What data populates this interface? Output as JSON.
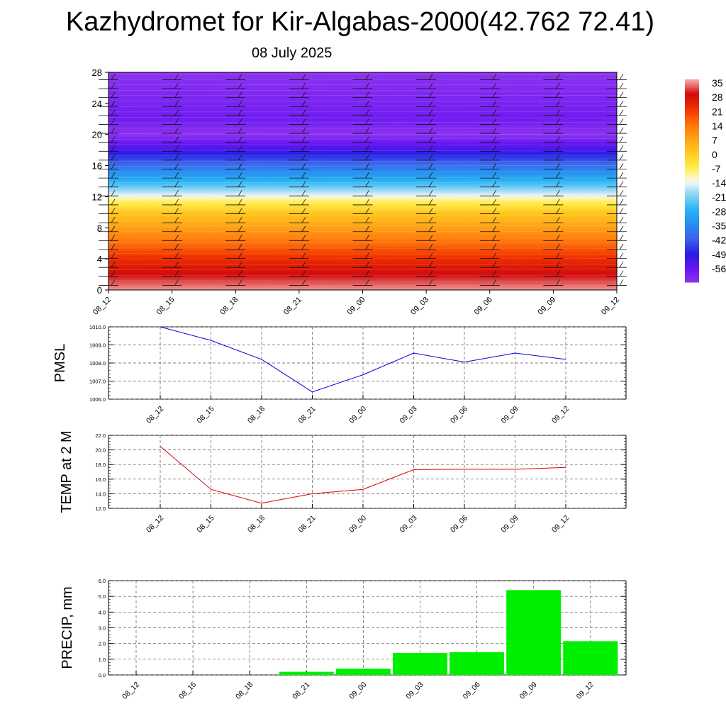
{
  "title": "Kazhydromet for Kir-Algabas-2000(42.762 72.41)",
  "subtitle": "08 July 2025",
  "colors": {
    "pmsl_line": "#0000dd",
    "temp_line": "#dd0000",
    "precip_bar": "#00ee00"
  },
  "chart_data": [
    {
      "type": "heatmap",
      "name": "cross-section",
      "x_ticks": [
        "08_12",
        "08_15",
        "08_18",
        "08_21",
        "09_00",
        "09_03",
        "09_06",
        "09_09",
        "09_12"
      ],
      "y_ticks": [
        "0",
        "4",
        "8",
        "12",
        "16",
        "20",
        "24",
        "28"
      ],
      "ylim": [
        0,
        28
      ],
      "colorbar_labels": [
        "35",
        "28",
        "21",
        "14",
        "7",
        "0",
        "-7",
        "-14",
        "-21",
        "-28",
        "-35",
        "-42",
        "-49",
        "-56"
      ],
      "colorbar_range": [
        -63,
        35
      ],
      "temperature_profile": [
        [
          0,
          34
        ],
        [
          2,
          28
        ],
        [
          4,
          22
        ],
        [
          6,
          14
        ],
        [
          8,
          7
        ],
        [
          10,
          0
        ],
        [
          11.6,
          -10
        ],
        [
          12,
          -14
        ],
        [
          14,
          -28
        ],
        [
          16,
          -40
        ],
        [
          18,
          -52
        ],
        [
          20,
          -63
        ],
        [
          22,
          -58
        ],
        [
          28,
          -63
        ]
      ],
      "wind_barbs": "on"
    },
    {
      "type": "line",
      "name": "pmsl",
      "ylabel": "PMSL",
      "categories": [
        "08_12",
        "08_15",
        "08_18",
        "08_21",
        "09_00",
        "09_03",
        "09_06",
        "09_09",
        "09_12"
      ],
      "values": [
        1010.0,
        1009.25,
        1008.2,
        1006.4,
        1007.35,
        1008.55,
        1008.05,
        1008.55,
        1008.2
      ],
      "ylim": [
        1006.0,
        1010.0
      ],
      "y_ticks": [
        "1006.0",
        "1007.0",
        "1008.0",
        "1009.0",
        "1010.0"
      ],
      "grid": "on"
    },
    {
      "type": "line",
      "name": "temp",
      "ylabel": "TEMP at 2 M",
      "categories": [
        "08_12",
        "08_15",
        "08_18",
        "08_21",
        "09_00",
        "09_03",
        "09_06",
        "09_09",
        "09_12"
      ],
      "values": [
        20.5,
        14.6,
        12.7,
        14.0,
        14.6,
        17.3,
        17.35,
        17.35,
        17.6
      ],
      "ylim": [
        12.0,
        22.0
      ],
      "y_ticks": [
        "12.0",
        "14.0",
        "16.0",
        "18.0",
        "20.0",
        "22.0"
      ],
      "grid": "on"
    },
    {
      "type": "bar",
      "name": "precip",
      "ylabel": "PRECIP, mm",
      "categories": [
        "08_12",
        "08_15",
        "08_18",
        "08_21",
        "09_00",
        "09_03",
        "09_06",
        "09_09",
        "09_12"
      ],
      "values": [
        0,
        0,
        0,
        0.2,
        0.4,
        1.4,
        1.45,
        5.4,
        2.15
      ],
      "ylim": [
        0,
        6.0
      ],
      "y_ticks": [
        "0.0",
        "1.0",
        "2.0",
        "3.0",
        "4.0",
        "5.0",
        "6.0"
      ],
      "grid": "on"
    }
  ]
}
